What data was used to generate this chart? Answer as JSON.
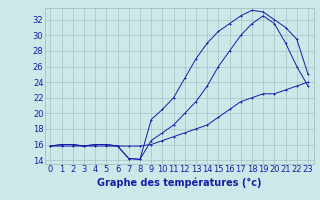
{
  "xlabel": "Graphe des températures (°c)",
  "bg_color": "#cce8e8",
  "line_color": "#1a1aaa",
  "hours": [
    0,
    1,
    2,
    3,
    4,
    5,
    6,
    7,
    8,
    9,
    10,
    11,
    12,
    13,
    14,
    15,
    16,
    17,
    18,
    19,
    20,
    21,
    22,
    23
  ],
  "line1": [
    15.8,
    16.0,
    16.0,
    15.8,
    16.0,
    16.0,
    15.8,
    14.2,
    14.1,
    19.2,
    20.5,
    22.0,
    24.5,
    27.0,
    29.0,
    30.5,
    31.5,
    32.5,
    33.2,
    33.0,
    32.0,
    31.0,
    29.5,
    25.0
  ],
  "line2": [
    15.8,
    16.0,
    16.0,
    15.8,
    16.0,
    16.0,
    15.8,
    14.2,
    14.1,
    16.5,
    17.5,
    18.5,
    20.0,
    21.5,
    23.5,
    26.0,
    28.0,
    30.0,
    31.5,
    32.5,
    31.5,
    29.0,
    26.0,
    23.5
  ],
  "line3": [
    15.8,
    15.8,
    15.8,
    15.8,
    15.8,
    15.8,
    15.8,
    15.8,
    15.8,
    16.0,
    16.5,
    17.0,
    17.5,
    18.0,
    18.5,
    19.5,
    20.5,
    21.5,
    22.0,
    22.5,
    22.5,
    23.0,
    23.5,
    24.0
  ],
  "ylim": [
    13.5,
    33.5
  ],
  "yticks": [
    14,
    16,
    18,
    20,
    22,
    24,
    26,
    28,
    30,
    32
  ],
  "xlim": [
    -0.5,
    23.5
  ],
  "grid_color": "#99bbbb",
  "xlabel_fontsize": 7,
  "tick_fontsize": 6,
  "marker_size": 2.0,
  "lw": 0.7
}
